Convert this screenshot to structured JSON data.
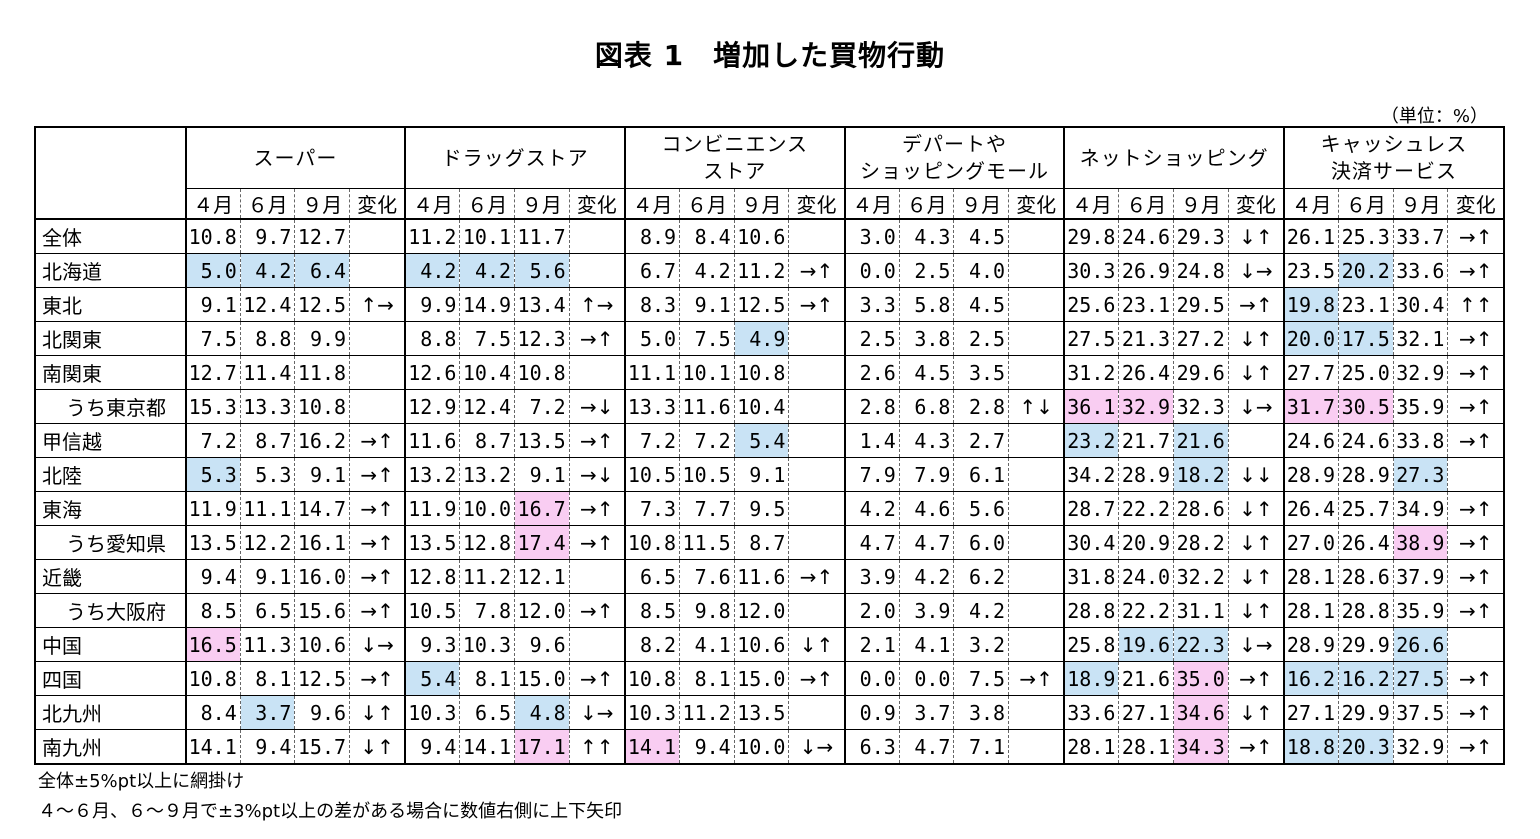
{
  "title": "図表 1　増加した買物行動",
  "unit": "（単位：%）",
  "month_headers": [
    "４月",
    "６月",
    "９月",
    "変化"
  ],
  "categories": [
    {
      "name": [
        "スーパー"
      ]
    },
    {
      "name": [
        "ドラッグストア"
      ]
    },
    {
      "name": [
        "コンビニエンス",
        "ストア"
      ]
    },
    {
      "name": [
        "デパートや",
        "ショッピングモール"
      ]
    },
    {
      "name": [
        "ネットショッピング"
      ]
    },
    {
      "name": [
        "キャッシュレス",
        "決済サービス"
      ]
    }
  ],
  "colors": {
    "blue": "#c9e3f5",
    "pink": "#f9cdf2"
  },
  "rows": [
    {
      "region": "全体",
      "indent": false,
      "cells": [
        [
          "10.8",
          "9.7",
          "12.7",
          ""
        ],
        [
          "11.2",
          "10.1",
          "11.7",
          ""
        ],
        [
          "8.9",
          "8.4",
          "10.6",
          ""
        ],
        [
          "3.0",
          "4.3",
          "4.5",
          ""
        ],
        [
          "29.8",
          "24.6",
          "29.3",
          "↓↑"
        ],
        [
          "26.1",
          "25.3",
          "33.7",
          "→↑"
        ]
      ],
      "shade": {}
    },
    {
      "region": "北海道",
      "indent": false,
      "cells": [
        [
          "5.0",
          "4.2",
          "6.4",
          ""
        ],
        [
          "4.2",
          "4.2",
          "5.6",
          ""
        ],
        [
          "6.7",
          "4.2",
          "11.2",
          "→↑"
        ],
        [
          "0.0",
          "2.5",
          "4.0",
          ""
        ],
        [
          "30.3",
          "26.9",
          "24.8",
          "↓→"
        ],
        [
          "23.5",
          "20.2",
          "33.6",
          "→↑"
        ]
      ],
      "shade": {
        "0-0": "blue",
        "0-1": "blue",
        "0-2": "blue",
        "1-0": "blue",
        "1-1": "blue",
        "1-2": "blue",
        "5-1": "blue"
      }
    },
    {
      "region": "東北",
      "indent": false,
      "cells": [
        [
          "9.1",
          "12.4",
          "12.5",
          "↑→"
        ],
        [
          "9.9",
          "14.9",
          "13.4",
          "↑→"
        ],
        [
          "8.3",
          "9.1",
          "12.5",
          "→↑"
        ],
        [
          "3.3",
          "5.8",
          "4.5",
          ""
        ],
        [
          "25.6",
          "23.1",
          "29.5",
          "→↑"
        ],
        [
          "19.8",
          "23.1",
          "30.4",
          "↑↑"
        ]
      ],
      "shade": {
        "5-0": "blue"
      }
    },
    {
      "region": "北関東",
      "indent": false,
      "cells": [
        [
          "7.5",
          "8.8",
          "9.9",
          ""
        ],
        [
          "8.8",
          "7.5",
          "12.3",
          "→↑"
        ],
        [
          "5.0",
          "7.5",
          "4.9",
          ""
        ],
        [
          "2.5",
          "3.8",
          "2.5",
          ""
        ],
        [
          "27.5",
          "21.3",
          "27.2",
          "↓↑"
        ],
        [
          "20.0",
          "17.5",
          "32.1",
          "→↑"
        ]
      ],
      "shade": {
        "2-2": "blue",
        "5-0": "blue",
        "5-1": "blue"
      }
    },
    {
      "region": "南関東",
      "indent": false,
      "cells": [
        [
          "12.7",
          "11.4",
          "11.8",
          ""
        ],
        [
          "12.6",
          "10.4",
          "10.8",
          ""
        ],
        [
          "11.1",
          "10.1",
          "10.8",
          ""
        ],
        [
          "2.6",
          "4.5",
          "3.5",
          ""
        ],
        [
          "31.2",
          "26.4",
          "29.6",
          "↓↑"
        ],
        [
          "27.7",
          "25.0",
          "32.9",
          "→↑"
        ]
      ],
      "shade": {}
    },
    {
      "region": "うち東京都",
      "indent": true,
      "cells": [
        [
          "15.3",
          "13.3",
          "10.8",
          ""
        ],
        [
          "12.9",
          "12.4",
          "7.2",
          "→↓"
        ],
        [
          "13.3",
          "11.6",
          "10.4",
          ""
        ],
        [
          "2.8",
          "6.8",
          "2.8",
          "↑↓"
        ],
        [
          "36.1",
          "32.9",
          "32.3",
          "↓→"
        ],
        [
          "31.7",
          "30.5",
          "35.9",
          "→↑"
        ]
      ],
      "shade": {
        "4-0": "pink",
        "4-1": "pink",
        "5-0": "pink",
        "5-1": "pink"
      }
    },
    {
      "region": "甲信越",
      "indent": false,
      "cells": [
        [
          "7.2",
          "8.7",
          "16.2",
          "→↑"
        ],
        [
          "11.6",
          "8.7",
          "13.5",
          "→↑"
        ],
        [
          "7.2",
          "7.2",
          "5.4",
          ""
        ],
        [
          "1.4",
          "4.3",
          "2.7",
          ""
        ],
        [
          "23.2",
          "21.7",
          "21.6",
          ""
        ],
        [
          "24.6",
          "24.6",
          "33.8",
          "→↑"
        ]
      ],
      "shade": {
        "2-2": "blue",
        "4-0": "blue",
        "4-2": "blue"
      }
    },
    {
      "region": "北陸",
      "indent": false,
      "cells": [
        [
          "5.3",
          "5.3",
          "9.1",
          "→↑"
        ],
        [
          "13.2",
          "13.2",
          "9.1",
          "→↓"
        ],
        [
          "10.5",
          "10.5",
          "9.1",
          ""
        ],
        [
          "7.9",
          "7.9",
          "6.1",
          ""
        ],
        [
          "34.2",
          "28.9",
          "18.2",
          "↓↓"
        ],
        [
          "28.9",
          "28.9",
          "27.3",
          ""
        ]
      ],
      "shade": {
        "0-0": "blue",
        "4-2": "blue",
        "5-2": "blue"
      }
    },
    {
      "region": "東海",
      "indent": false,
      "cells": [
        [
          "11.9",
          "11.1",
          "14.7",
          "→↑"
        ],
        [
          "11.9",
          "10.0",
          "16.7",
          "→↑"
        ],
        [
          "7.3",
          "7.7",
          "9.5",
          ""
        ],
        [
          "4.2",
          "4.6",
          "5.6",
          ""
        ],
        [
          "28.7",
          "22.2",
          "28.6",
          "↓↑"
        ],
        [
          "26.4",
          "25.7",
          "34.9",
          "→↑"
        ]
      ],
      "shade": {
        "1-2": "pink"
      }
    },
    {
      "region": "うち愛知県",
      "indent": true,
      "cells": [
        [
          "13.5",
          "12.2",
          "16.1",
          "→↑"
        ],
        [
          "13.5",
          "12.8",
          "17.4",
          "→↑"
        ],
        [
          "10.8",
          "11.5",
          "8.7",
          ""
        ],
        [
          "4.7",
          "4.7",
          "6.0",
          ""
        ],
        [
          "30.4",
          "20.9",
          "28.2",
          "↓↑"
        ],
        [
          "27.0",
          "26.4",
          "38.9",
          "→↑"
        ]
      ],
      "shade": {
        "1-2": "pink",
        "5-2": "pink"
      }
    },
    {
      "region": "近畿",
      "indent": false,
      "cells": [
        [
          "9.4",
          "9.1",
          "16.0",
          "→↑"
        ],
        [
          "12.8",
          "11.2",
          "12.1",
          ""
        ],
        [
          "6.5",
          "7.6",
          "11.6",
          "→↑"
        ],
        [
          "3.9",
          "4.2",
          "6.2",
          ""
        ],
        [
          "31.8",
          "24.0",
          "32.2",
          "↓↑"
        ],
        [
          "28.1",
          "28.6",
          "37.9",
          "→↑"
        ]
      ],
      "shade": {}
    },
    {
      "region": "うち大阪府",
      "indent": true,
      "cells": [
        [
          "8.5",
          "6.5",
          "15.6",
          "→↑"
        ],
        [
          "10.5",
          "7.8",
          "12.0",
          "→↑"
        ],
        [
          "8.5",
          "9.8",
          "12.0",
          ""
        ],
        [
          "2.0",
          "3.9",
          "4.2",
          ""
        ],
        [
          "28.8",
          "22.2",
          "31.1",
          "↓↑"
        ],
        [
          "28.1",
          "28.8",
          "35.9",
          "→↑"
        ]
      ],
      "shade": {}
    },
    {
      "region": "中国",
      "indent": false,
      "cells": [
        [
          "16.5",
          "11.3",
          "10.6",
          "↓→"
        ],
        [
          "9.3",
          "10.3",
          "9.6",
          ""
        ],
        [
          "8.2",
          "4.1",
          "10.6",
          "↓↑"
        ],
        [
          "2.1",
          "4.1",
          "3.2",
          ""
        ],
        [
          "25.8",
          "19.6",
          "22.3",
          "↓→"
        ],
        [
          "28.9",
          "29.9",
          "26.6",
          ""
        ]
      ],
      "shade": {
        "0-0": "pink",
        "4-1": "blue",
        "4-2": "blue",
        "5-2": "blue"
      }
    },
    {
      "region": "四国",
      "indent": false,
      "cells": [
        [
          "10.8",
          "8.1",
          "12.5",
          "→↑"
        ],
        [
          "5.4",
          "8.1",
          "15.0",
          "→↑"
        ],
        [
          "10.8",
          "8.1",
          "15.0",
          "→↑"
        ],
        [
          "0.0",
          "0.0",
          "7.5",
          "→↑"
        ],
        [
          "18.9",
          "21.6",
          "35.0",
          "→↑"
        ],
        [
          "16.2",
          "16.2",
          "27.5",
          "→↑"
        ]
      ],
      "shade": {
        "1-0": "blue",
        "4-0": "blue",
        "4-2": "pink",
        "5-0": "blue",
        "5-1": "blue",
        "5-2": "blue"
      }
    },
    {
      "region": "北九州",
      "indent": false,
      "cells": [
        [
          "8.4",
          "3.7",
          "9.6",
          "↓↑"
        ],
        [
          "10.3",
          "6.5",
          "4.8",
          "↓→"
        ],
        [
          "10.3",
          "11.2",
          "13.5",
          ""
        ],
        [
          "0.9",
          "3.7",
          "3.8",
          ""
        ],
        [
          "33.6",
          "27.1",
          "34.6",
          "↓↑"
        ],
        [
          "27.1",
          "29.9",
          "37.5",
          "→↑"
        ]
      ],
      "shade": {
        "0-1": "blue",
        "1-2": "blue",
        "4-2": "pink"
      }
    },
    {
      "region": "南九州",
      "indent": false,
      "cells": [
        [
          "14.1",
          "9.4",
          "15.7",
          "↓↑"
        ],
        [
          "9.4",
          "14.1",
          "17.1",
          "↑↑"
        ],
        [
          "14.1",
          "9.4",
          "10.0",
          "↓→"
        ],
        [
          "6.3",
          "4.7",
          "7.1",
          ""
        ],
        [
          "28.1",
          "28.1",
          "34.3",
          "→↑"
        ],
        [
          "18.8",
          "20.3",
          "32.9",
          "→↑"
        ]
      ],
      "shade": {
        "1-2": "pink",
        "2-0": "pink",
        "4-2": "pink",
        "5-0": "blue",
        "5-1": "blue"
      }
    }
  ],
  "notes": [
    "全体±5%pt以上に網掛け",
    "４～６月、６～９月で±3%pt以上の差がある場合に数値右側に上下矢印"
  ]
}
